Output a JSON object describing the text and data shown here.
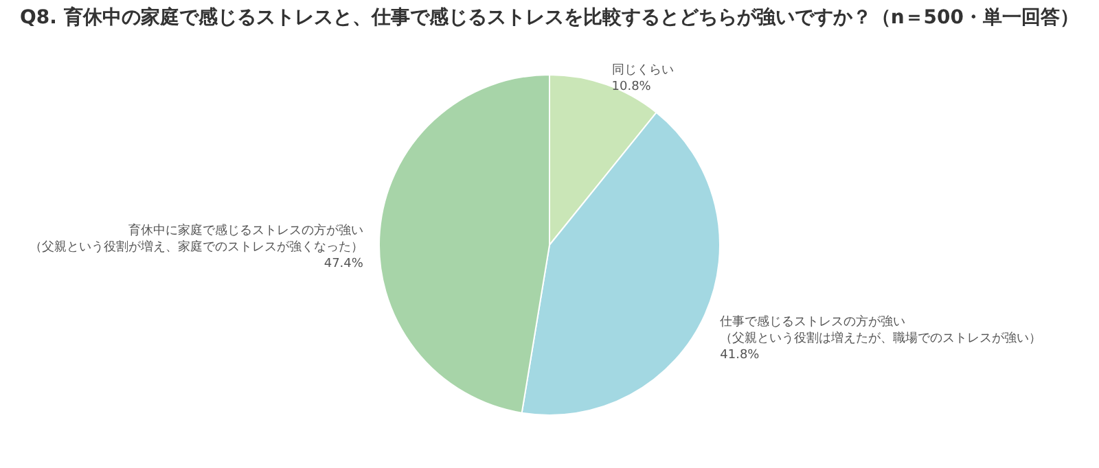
{
  "chart_data": {
    "type": "pie",
    "title": "Q8. 育休中の家庭で感じるストレスと、仕事で感じるストレスを比較するとどちらが強いですか？（n＝500・単一回答）",
    "categories": [
      "同じくらい",
      "仕事で感じるストレスの方が強い（父親という役割は増えたが、職場でのストレスが強い）",
      "育休中に家庭で感じるストレスの方が強い（父親という役割が増え、家庭でのストレスが強くなった）"
    ],
    "values": [
      10.8,
      41.8,
      47.4
    ],
    "value_labels": [
      "10.8%",
      "41.8%",
      "47.4%"
    ],
    "colors": [
      "#cae6b7",
      "#a3d8e2",
      "#a7d4a8"
    ]
  }
}
